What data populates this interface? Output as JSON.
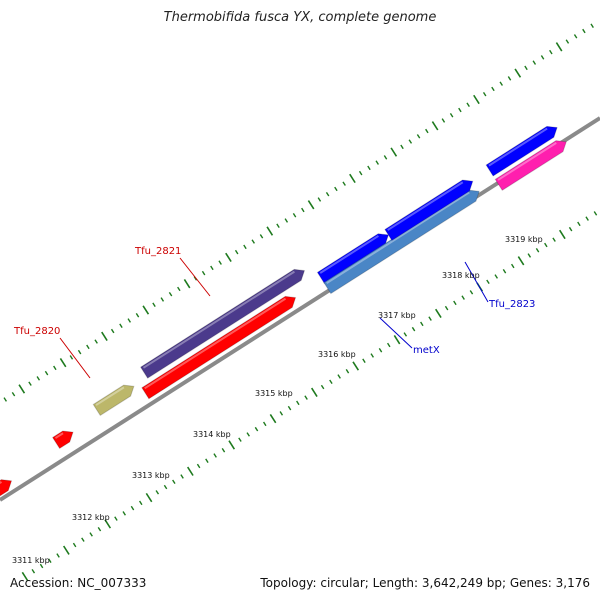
{
  "title": "Thermobifida fusca YX, complete genome",
  "footer": {
    "accession": "Accession: NC_007333",
    "topology": "Topology: circular; Length: 3,642,249 bp; Genes: 3,176"
  },
  "colors": {
    "backbone": "#8a8a8a",
    "tick": "#1e7a1e",
    "label_red": "#cc0000",
    "label_blue": "#0000cc",
    "scale_text": "#111111"
  },
  "scale": {
    "unit": "kbp",
    "labels": [
      "3311 kbp",
      "3312 kbp",
      "3313 kbp",
      "3314 kbp",
      "3315 kbp",
      "3316 kbp",
      "3317 kbp",
      "3318 kbp",
      "3319 kbp"
    ]
  },
  "genes": [
    {
      "name": "Tfu_2819",
      "strand": "reverse",
      "color": "#ff0000",
      "labeled": false
    },
    {
      "name": "Tfu_2820",
      "strand": "reverse",
      "color": "#ff0000",
      "labeled": true
    },
    {
      "name": "Tfu_2820_feature",
      "strand": "forward",
      "color": "#bcb76a",
      "labeled": false
    },
    {
      "name": "Tfu_2821",
      "strand": "reverse",
      "color": "#ff0000",
      "labeled": true
    },
    {
      "name": "Tfu_2821_feature",
      "strand": "forward",
      "color": "#4b3a8c",
      "labeled": false
    },
    {
      "name": "metX",
      "strand": "reverse",
      "color": "#0000ff",
      "labeled": true
    },
    {
      "name": "metX_feature",
      "strand": "forward",
      "color": "#4a86c6",
      "labeled": false
    },
    {
      "name": "Tfu_2823",
      "strand": "reverse",
      "color": "#0000ff",
      "labeled": true
    },
    {
      "name": "Tfu_2824",
      "strand": "reverse",
      "color": "#0000ff",
      "labeled": false
    },
    {
      "name": "Tfu_2824_feature",
      "strand": "forward",
      "color": "#ff1fae",
      "labeled": false
    }
  ],
  "gene_labels": [
    {
      "text": "Tfu_2820",
      "color": "#cc0000"
    },
    {
      "text": "Tfu_2821",
      "color": "#cc0000"
    },
    {
      "text": "metX",
      "color": "#0000cc"
    },
    {
      "text": "Tfu_2823",
      "color": "#0000cc"
    }
  ]
}
